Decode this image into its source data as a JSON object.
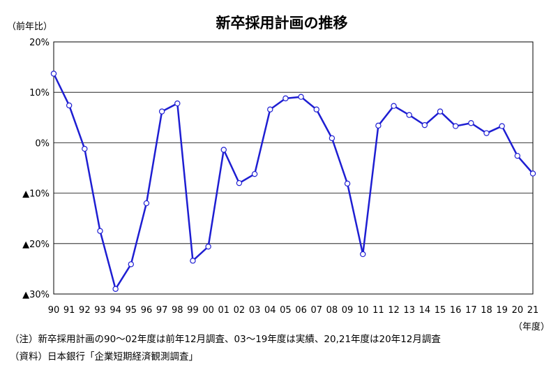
{
  "chart_data": {
    "type": "line",
    "title": "新卒採用計画の推移",
    "ylabel": "（前年比）",
    "xlabel": "（年度）",
    "ylim": [
      -30,
      20
    ],
    "y_ticks": [
      {
        "value": 20,
        "label": "20%"
      },
      {
        "value": 10,
        "label": "10%"
      },
      {
        "value": 0,
        "label": "0%"
      },
      {
        "value": -10,
        "label": "▲10%"
      },
      {
        "value": -20,
        "label": "▲20%"
      },
      {
        "value": -30,
        "label": "▲30%"
      }
    ],
    "grid": true,
    "categories": [
      "90",
      "91",
      "92",
      "93",
      "94",
      "95",
      "96",
      "97",
      "98",
      "99",
      "00",
      "01",
      "02",
      "03",
      "04",
      "05",
      "06",
      "07",
      "08",
      "09",
      "10",
      "11",
      "12",
      "13",
      "14",
      "15",
      "16",
      "17",
      "18",
      "19",
      "20",
      "21"
    ],
    "series": [
      {
        "color": "#1e1ed2",
        "values": [
          13.7,
          7.4,
          -1.2,
          -17.5,
          -29.0,
          -24.1,
          -12.0,
          6.2,
          7.8,
          -23.4,
          -20.6,
          -1.4,
          -8.0,
          -6.2,
          6.6,
          8.8,
          9.1,
          6.6,
          0.9,
          -8.1,
          -22.1,
          3.4,
          7.3,
          5.5,
          3.5,
          6.2,
          3.3,
          3.9,
          1.9,
          3.3,
          -2.6,
          -6.1
        ]
      }
    ]
  },
  "notes": {
    "note1": "（注）新卒採用計画の90～02年度は前年12月調査、03～19年度は実績、20,21年度は20年12月調査",
    "note2": "（資料）日本銀行「企業短期経済観測調査」"
  }
}
